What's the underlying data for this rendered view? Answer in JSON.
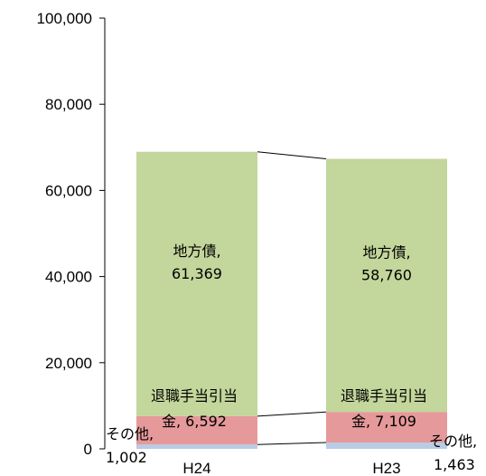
{
  "chart_data": {
    "type": "bar",
    "stacked": true,
    "categories": [
      "H24",
      "H23"
    ],
    "ylim": [
      0,
      100000
    ],
    "y_ticks": [
      "0",
      "20,000",
      "40,000",
      "60,000",
      "80,000",
      "100,000"
    ],
    "series_lines": true,
    "grid": false,
    "legend": "none",
    "series": [
      {
        "values": [
          1002,
          1463
        ],
        "color": "#b8cce4",
        "labels": [
          {
            "name": "その他,",
            "value": "1,002"
          },
          {
            "name": "その他,",
            "value": "1,463"
          }
        ]
      },
      {
        "values": [
          6592,
          7109
        ],
        "color": "#e6999a",
        "labels": [
          {
            "name": "退職手当引当",
            "value": "金, 6,592"
          },
          {
            "name": "退職手当引当",
            "value": "金, 7,109"
          }
        ]
      },
      {
        "values": [
          61369,
          58760
        ],
        "color": "#c3d69b",
        "labels": [
          {
            "name": "地方債,",
            "value": "61,369"
          },
          {
            "name": "地方債,",
            "value": "58,760"
          }
        ]
      }
    ]
  }
}
